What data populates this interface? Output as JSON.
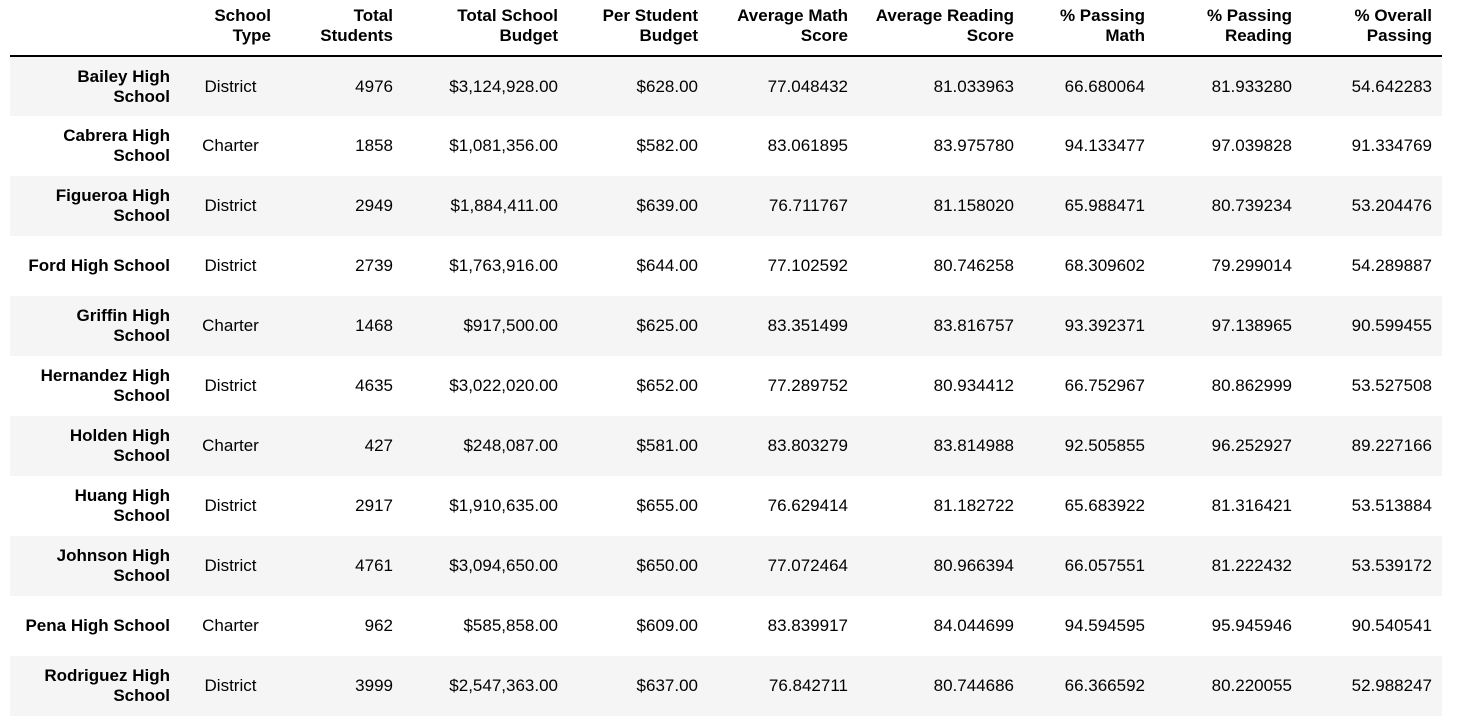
{
  "columns": [
    "",
    "School Type",
    "Total Students",
    "Total School Budget",
    "Per Student Budget",
    "Average Math Score",
    "Average Reading Score",
    "% Passing Math",
    "% Passing Reading",
    "% Overall Passing"
  ],
  "rows": [
    {
      "name": "Bailey High School",
      "type": "District",
      "students": "4976",
      "budget": "$3,124,928.00",
      "per_student": "$628.00",
      "math": "77.048432",
      "reading": "81.033963",
      "pass_math": "66.680064",
      "pass_reading": "81.933280",
      "overall": "54.642283"
    },
    {
      "name": "Cabrera High School",
      "type": "Charter",
      "students": "1858",
      "budget": "$1,081,356.00",
      "per_student": "$582.00",
      "math": "83.061895",
      "reading": "83.975780",
      "pass_math": "94.133477",
      "pass_reading": "97.039828",
      "overall": "91.334769"
    },
    {
      "name": "Figueroa High School",
      "type": "District",
      "students": "2949",
      "budget": "$1,884,411.00",
      "per_student": "$639.00",
      "math": "76.711767",
      "reading": "81.158020",
      "pass_math": "65.988471",
      "pass_reading": "80.739234",
      "overall": "53.204476"
    },
    {
      "name": "Ford High School",
      "type": "District",
      "students": "2739",
      "budget": "$1,763,916.00",
      "per_student": "$644.00",
      "math": "77.102592",
      "reading": "80.746258",
      "pass_math": "68.309602",
      "pass_reading": "79.299014",
      "overall": "54.289887"
    },
    {
      "name": "Griffin High School",
      "type": "Charter",
      "students": "1468",
      "budget": "$917,500.00",
      "per_student": "$625.00",
      "math": "83.351499",
      "reading": "83.816757",
      "pass_math": "93.392371",
      "pass_reading": "97.138965",
      "overall": "90.599455"
    },
    {
      "name": "Hernandez High School",
      "type": "District",
      "students": "4635",
      "budget": "$3,022,020.00",
      "per_student": "$652.00",
      "math": "77.289752",
      "reading": "80.934412",
      "pass_math": "66.752967",
      "pass_reading": "80.862999",
      "overall": "53.527508"
    },
    {
      "name": "Holden High School",
      "type": "Charter",
      "students": "427",
      "budget": "$248,087.00",
      "per_student": "$581.00",
      "math": "83.803279",
      "reading": "83.814988",
      "pass_math": "92.505855",
      "pass_reading": "96.252927",
      "overall": "89.227166"
    },
    {
      "name": "Huang High School",
      "type": "District",
      "students": "2917",
      "budget": "$1,910,635.00",
      "per_student": "$655.00",
      "math": "76.629414",
      "reading": "81.182722",
      "pass_math": "65.683922",
      "pass_reading": "81.316421",
      "overall": "53.513884"
    },
    {
      "name": "Johnson High School",
      "type": "District",
      "students": "4761",
      "budget": "$3,094,650.00",
      "per_student": "$650.00",
      "math": "77.072464",
      "reading": "80.966394",
      "pass_math": "66.057551",
      "pass_reading": "81.222432",
      "overall": "53.539172"
    },
    {
      "name": "Pena High School",
      "type": "Charter",
      "students": "962",
      "budget": "$585,858.00",
      "per_student": "$609.00",
      "math": "83.839917",
      "reading": "84.044699",
      "pass_math": "94.594595",
      "pass_reading": "95.945946",
      "overall": "90.540541"
    },
    {
      "name": "Rodriguez High School",
      "type": "District",
      "students": "3999",
      "budget": "$2,547,363.00",
      "per_student": "$637.00",
      "math": "76.842711",
      "reading": "80.744686",
      "pass_math": "66.366592",
      "pass_reading": "80.220055",
      "overall": "52.988247"
    }
  ]
}
